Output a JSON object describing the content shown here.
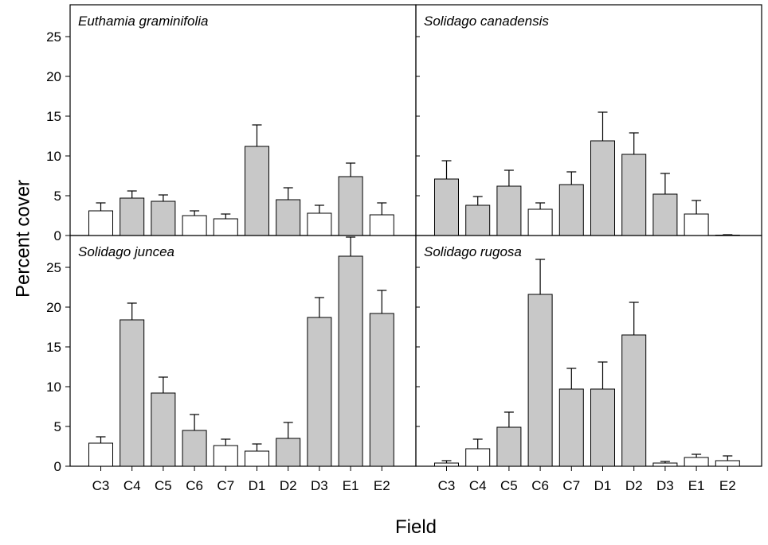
{
  "chart_data": {
    "type": "bar",
    "xlabel": "Field",
    "ylabel": "Percent cover",
    "categories": [
      "C3",
      "C4",
      "C5",
      "C6",
      "C7",
      "D1",
      "D2",
      "D3",
      "E1",
      "E2"
    ],
    "ylim": [
      0,
      29
    ],
    "yticks": [
      0,
      5,
      10,
      15,
      20,
      25
    ],
    "colors": {
      "filled": "#c8c8c8",
      "open": "#ffffff"
    },
    "panels": [
      {
        "title": "Euthamia graminifolia",
        "values": [
          3.1,
          4.7,
          4.3,
          2.5,
          2.1,
          11.2,
          4.5,
          2.8,
          7.4,
          2.6
        ],
        "errors": [
          1.0,
          0.9,
          0.8,
          0.6,
          0.6,
          2.7,
          1.5,
          1.0,
          1.7,
          1.5
        ],
        "filled": [
          false,
          true,
          true,
          false,
          false,
          true,
          true,
          false,
          true,
          false
        ]
      },
      {
        "title": "Solidago canadensis",
        "values": [
          7.1,
          3.8,
          6.2,
          3.3,
          6.4,
          11.9,
          10.2,
          5.2,
          2.7,
          0.0
        ],
        "errors": [
          2.3,
          1.1,
          2.0,
          0.8,
          1.6,
          3.6,
          2.7,
          2.6,
          1.7,
          0.1
        ],
        "filled": [
          true,
          true,
          true,
          false,
          true,
          true,
          true,
          true,
          false,
          false
        ]
      },
      {
        "title": "Solidago juncea",
        "values": [
          2.9,
          18.4,
          9.2,
          4.5,
          2.6,
          1.9,
          3.5,
          18.7,
          26.4,
          19.2
        ],
        "errors": [
          0.8,
          2.1,
          2.0,
          2.0,
          0.8,
          0.9,
          2.0,
          2.5,
          2.4,
          2.9
        ],
        "filled": [
          false,
          true,
          true,
          true,
          false,
          false,
          true,
          true,
          true,
          true
        ]
      },
      {
        "title": "Solidago rugosa",
        "values": [
          0.4,
          2.2,
          4.9,
          21.6,
          9.7,
          9.7,
          16.5,
          0.4,
          1.1,
          0.7
        ],
        "errors": [
          0.3,
          1.2,
          1.9,
          4.4,
          2.6,
          3.4,
          4.1,
          0.2,
          0.4,
          0.6
        ],
        "filled": [
          false,
          false,
          true,
          true,
          true,
          true,
          true,
          false,
          false,
          false
        ]
      }
    ]
  }
}
